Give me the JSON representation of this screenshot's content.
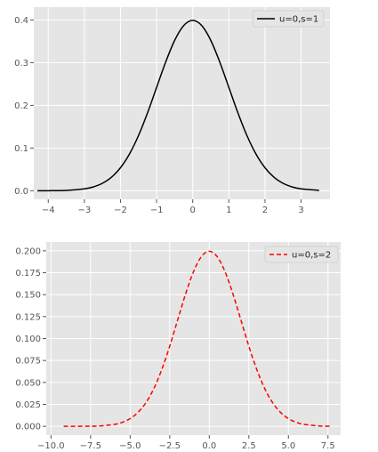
{
  "chart_data": [
    {
      "type": "line",
      "title": "",
      "xlabel": "",
      "ylabel": "",
      "xlim": [
        -4.4,
        3.8
      ],
      "ylim": [
        -0.02,
        0.43
      ],
      "xticks": [
        -4,
        -3,
        -2,
        -1,
        0,
        1,
        2,
        3
      ],
      "xtick_labels": [
        "−4",
        "−3",
        "−2",
        "−1",
        "0",
        "1",
        "2",
        "3"
      ],
      "yticks": [
        0.0,
        0.1,
        0.2,
        0.3,
        0.4
      ],
      "ytick_labels": [
        "0.0",
        "0.1",
        "0.2",
        "0.3",
        "0.4"
      ],
      "grid": true,
      "legend_position": "top-right",
      "series": [
        {
          "name": "u=0,s=1",
          "color": "#000000",
          "style": "solid",
          "x": [
            -4.3,
            -4.0,
            -3.5,
            -3.0,
            -2.75,
            -2.5,
            -2.25,
            -2.0,
            -1.75,
            -1.5,
            -1.25,
            -1.0,
            -0.75,
            -0.5,
            -0.25,
            0.0,
            0.25,
            0.5,
            0.75,
            1.0,
            1.25,
            1.5,
            1.75,
            2.0,
            2.25,
            2.5,
            2.75,
            3.0,
            3.5
          ],
          "y": [
            0.0,
            0.0001,
            0.0009,
            0.0044,
            0.0091,
            0.0175,
            0.0317,
            0.054,
            0.0863,
            0.1295,
            0.1826,
            0.242,
            0.3011,
            0.3521,
            0.3867,
            0.3989,
            0.3867,
            0.3521,
            0.3011,
            0.242,
            0.1826,
            0.1295,
            0.0863,
            0.054,
            0.0317,
            0.0175,
            0.0091,
            0.0044,
            0.0009
          ]
        }
      ]
    },
    {
      "type": "line",
      "title": "",
      "xlabel": "",
      "ylabel": "",
      "xlim": [
        -10.3,
        8.3
      ],
      "ylim": [
        -0.01,
        0.21
      ],
      "xticks": [
        -10.0,
        -7.5,
        -5.0,
        -2.5,
        0.0,
        2.5,
        5.0,
        7.5
      ],
      "xtick_labels": [
        "−10.0",
        "−7.5",
        "−5.0",
        "−2.5",
        "0.0",
        "2.5",
        "5.0",
        "7.5"
      ],
      "yticks": [
        0.0,
        0.025,
        0.05,
        0.075,
        0.1,
        0.125,
        0.15,
        0.175,
        0.2
      ],
      "ytick_labels": [
        "0.000",
        "0.025",
        "0.050",
        "0.075",
        "0.100",
        "0.125",
        "0.150",
        "0.175",
        "0.200"
      ],
      "grid": true,
      "legend_position": "top-right",
      "series": [
        {
          "name": "u=0,s=2",
          "color": "#ff0000",
          "style": "dashed",
          "x": [
            -9.2,
            -8.0,
            -7.0,
            -6.0,
            -5.5,
            -5.0,
            -4.5,
            -4.0,
            -3.5,
            -3.0,
            -2.5,
            -2.0,
            -1.5,
            -1.0,
            -0.5,
            0.0,
            0.5,
            1.0,
            1.5,
            2.0,
            2.5,
            3.0,
            3.5,
            4.0,
            4.5,
            5.0,
            5.5,
            6.0,
            7.0,
            7.6
          ],
          "y": [
            0.0,
            0.0001,
            0.0004,
            0.0022,
            0.0045,
            0.0088,
            0.0159,
            0.027,
            0.0431,
            0.0648,
            0.0913,
            0.121,
            0.1506,
            0.176,
            0.1933,
            0.1995,
            0.1933,
            0.176,
            0.1506,
            0.121,
            0.0913,
            0.0648,
            0.0431,
            0.027,
            0.0159,
            0.0088,
            0.0045,
            0.0022,
            0.0004,
            0.0001
          ]
        }
      ]
    }
  ]
}
